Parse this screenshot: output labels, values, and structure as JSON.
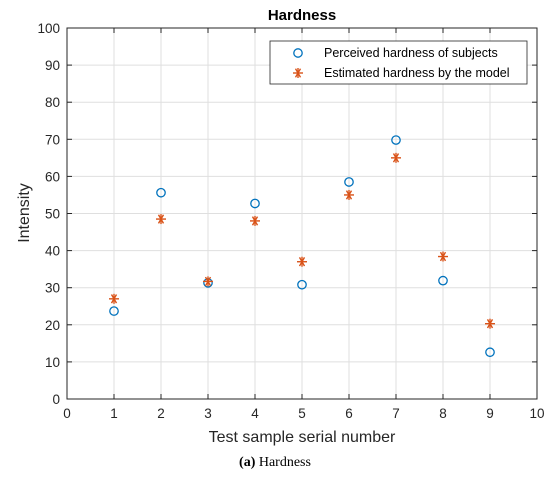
{
  "chart_data": {
    "type": "scatter",
    "title": "Hardness",
    "xlabel": "Test sample serial number",
    "ylabel": "Intensity",
    "xlim": [
      0,
      10
    ],
    "ylim": [
      0,
      100
    ],
    "xticks": [
      0,
      1,
      2,
      3,
      4,
      5,
      6,
      7,
      8,
      9,
      10
    ],
    "yticks": [
      0,
      10,
      20,
      30,
      40,
      50,
      60,
      70,
      80,
      90,
      100
    ],
    "grid": true,
    "legend_position": "top-right",
    "series": [
      {
        "name": "Perceived hardness of subjects",
        "marker": "circle",
        "color": "#0072BD",
        "x": [
          1,
          2,
          3,
          4,
          5,
          6,
          7,
          8,
          9
        ],
        "y": [
          23.7,
          55.6,
          31.3,
          52.7,
          30.8,
          58.5,
          69.8,
          31.9,
          12.6
        ]
      },
      {
        "name": "Estimated hardness by the model",
        "marker": "asterisk",
        "color": "#D95319",
        "x": [
          1,
          2,
          3,
          4,
          5,
          6,
          7,
          8,
          9
        ],
        "y": [
          27.0,
          48.5,
          31.7,
          48.0,
          37.0,
          55.0,
          65.0,
          38.4,
          20.3
        ]
      }
    ]
  },
  "caption": {
    "label": "(a)",
    "text": "Hardness"
  }
}
